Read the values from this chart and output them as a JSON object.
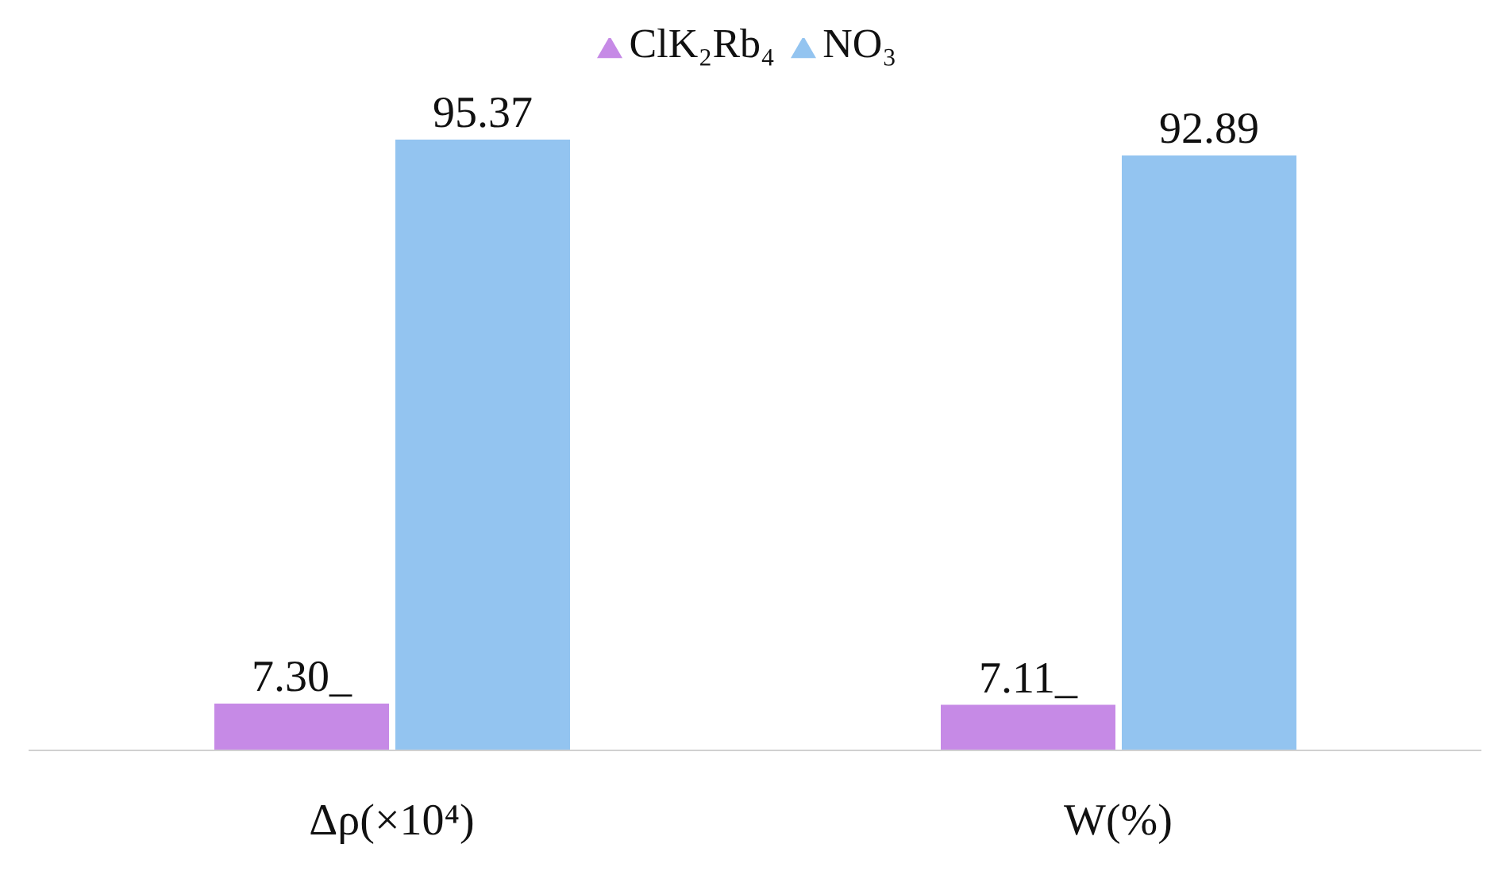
{
  "chart_data": {
    "type": "bar",
    "categories": [
      "Δρ(×10⁴)",
      "W(%)"
    ],
    "series": [
      {
        "name": "ClK₂Rb₄",
        "color": "#c68ae6",
        "values": [
          7.3,
          7.11
        ],
        "value_labels": [
          "7.30_",
          "7.11_"
        ]
      },
      {
        "name": "NO₃",
        "color": "#93c4f0",
        "values": [
          95.37,
          92.89
        ],
        "value_labels": [
          "95.37",
          "92.89"
        ]
      }
    ],
    "legend": "top",
    "grid": false
  }
}
